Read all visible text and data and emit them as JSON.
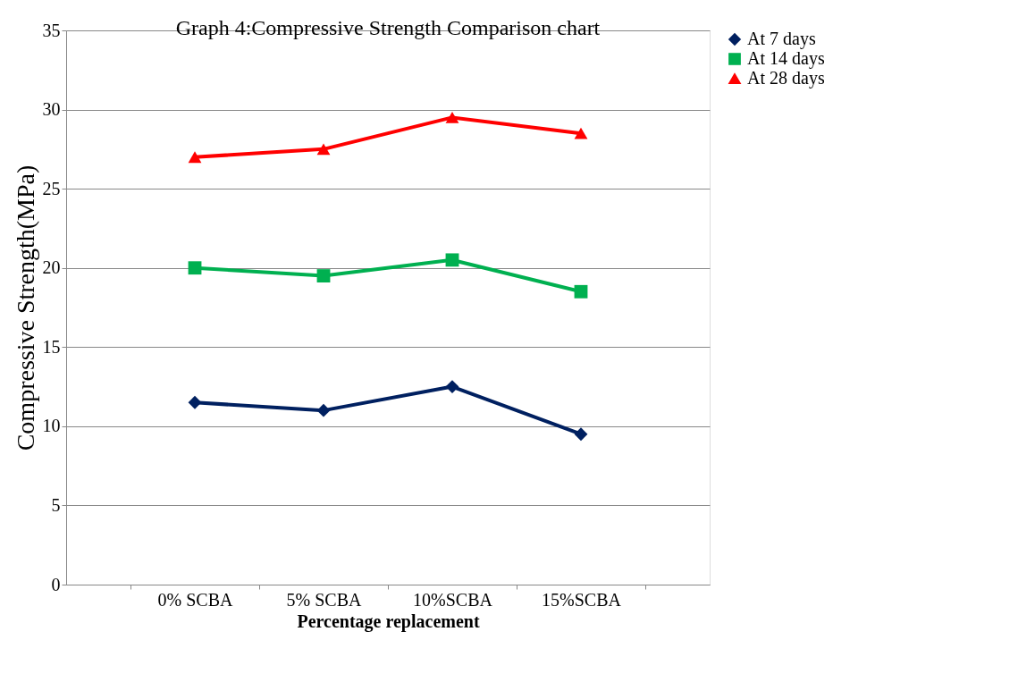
{
  "chart_data": {
    "type": "line",
    "title": "Graph 4:Compressive Strength Comparison chart",
    "xlabel": "Percentage replacement",
    "ylabel": "Compressive  Strength(MPa)",
    "categories": [
      "0% SCBA",
      "5% SCBA",
      "10%SCBA",
      "15%SCBA"
    ],
    "series": [
      {
        "name": "At 7 days",
        "color": "#002060",
        "marker": "diamond",
        "values": [
          11.5,
          11,
          12.5,
          9.5
        ]
      },
      {
        "name": "At 14 days",
        "color": "#00b050",
        "marker": "square",
        "values": [
          20,
          19.5,
          20.5,
          18.5
        ]
      },
      {
        "name": "At 28 days",
        "color": "#ff0000",
        "marker": "triangle",
        "values": [
          27,
          27.5,
          29.5,
          28.5
        ]
      }
    ],
    "ylim": [
      0,
      35
    ],
    "yticks": [
      0,
      5,
      10,
      15,
      20,
      25,
      30,
      35
    ],
    "grid": "y",
    "legend": "right",
    "line_style": "solid"
  }
}
